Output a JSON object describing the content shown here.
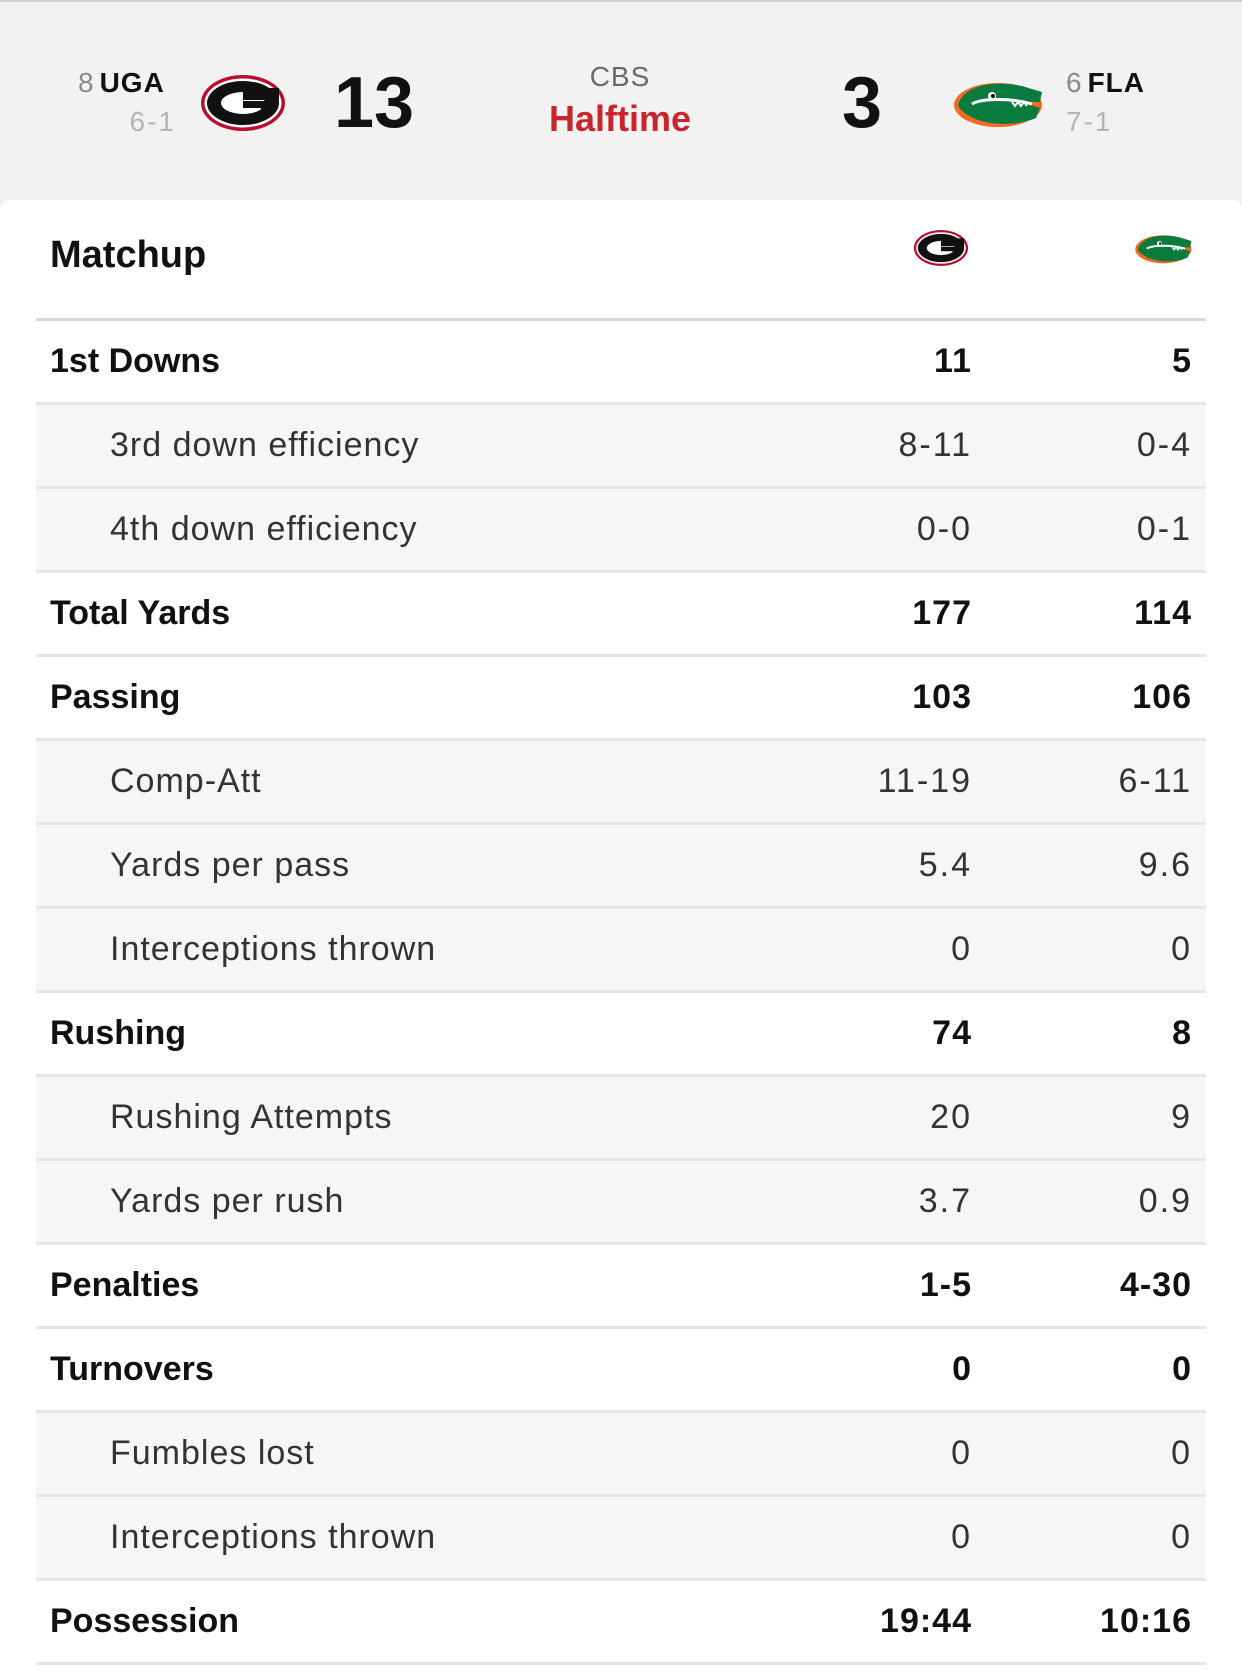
{
  "scoreboard": {
    "away": {
      "rank": "8",
      "abbr": "UGA",
      "record": "6-1",
      "score": "13",
      "logo_icon": "georgia-g-logo-icon",
      "color": "#ba0c2f"
    },
    "home": {
      "rank": "6",
      "abbr": "FLA",
      "record": "7-1",
      "score": "3",
      "logo_icon": "florida-gator-logo-icon",
      "color": "#0a7b3e"
    },
    "network": "CBS",
    "status": "Halftime",
    "status_color": "#c8262c"
  },
  "matchup": {
    "title": "Matchup",
    "rows": [
      {
        "label": "1st Downs",
        "uga": "11",
        "fla": "5",
        "type": "main"
      },
      {
        "label": "3rd down efficiency",
        "uga": "8-11",
        "fla": "0-4",
        "type": "sub"
      },
      {
        "label": "4th down efficiency",
        "uga": "0-0",
        "fla": "0-1",
        "type": "sub"
      },
      {
        "label": "Total Yards",
        "uga": "177",
        "fla": "114",
        "type": "main"
      },
      {
        "label": "Passing",
        "uga": "103",
        "fla": "106",
        "type": "main"
      },
      {
        "label": "Comp-Att",
        "uga": "11-19",
        "fla": "6-11",
        "type": "sub"
      },
      {
        "label": "Yards per pass",
        "uga": "5.4",
        "fla": "9.6",
        "type": "sub"
      },
      {
        "label": "Interceptions thrown",
        "uga": "0",
        "fla": "0",
        "type": "sub"
      },
      {
        "label": "Rushing",
        "uga": "74",
        "fla": "8",
        "type": "main"
      },
      {
        "label": "Rushing Attempts",
        "uga": "20",
        "fla": "9",
        "type": "sub"
      },
      {
        "label": "Yards per rush",
        "uga": "3.7",
        "fla": "0.9",
        "type": "sub"
      },
      {
        "label": "Penalties",
        "uga": "1-5",
        "fla": "4-30",
        "type": "main"
      },
      {
        "label": "Turnovers",
        "uga": "0",
        "fla": "0",
        "type": "main"
      },
      {
        "label": "Fumbles lost",
        "uga": "0",
        "fla": "0",
        "type": "sub"
      },
      {
        "label": "Interceptions thrown",
        "uga": "0",
        "fla": "0",
        "type": "sub"
      },
      {
        "label": "Possession",
        "uga": "19:44",
        "fla": "10:16",
        "type": "main"
      }
    ]
  }
}
